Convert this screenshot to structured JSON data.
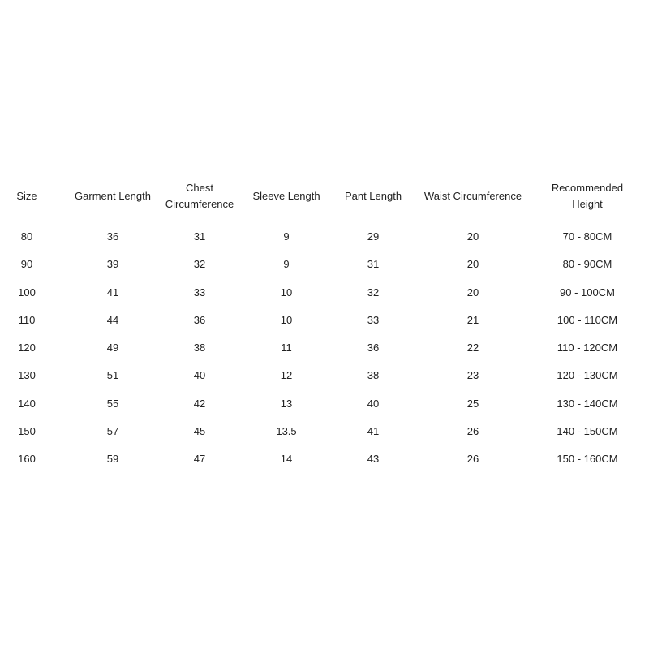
{
  "size_chart": {
    "headers": [
      "Size",
      "Garment Length",
      "Chest Circumference",
      "Sleeve Length",
      "Pant Length",
      "Waist Circumference",
      "Recommended Height"
    ],
    "rows": [
      [
        "80",
        "36",
        "31",
        "9",
        "29",
        "20",
        "70 - 80CM"
      ],
      [
        "90",
        "39",
        "32",
        "9",
        "31",
        "20",
        "80 - 90CM"
      ],
      [
        "100",
        "41",
        "33",
        "10",
        "32",
        "20",
        "90 - 100CM"
      ],
      [
        "110",
        "44",
        "36",
        "10",
        "33",
        "21",
        "100 - 110CM"
      ],
      [
        "120",
        "49",
        "38",
        "11",
        "36",
        "22",
        "110 - 120CM"
      ],
      [
        "130",
        "51",
        "40",
        "12",
        "38",
        "23",
        "120 - 130CM"
      ],
      [
        "140",
        "55",
        "42",
        "13",
        "40",
        "25",
        "130 - 140CM"
      ],
      [
        "150",
        "57",
        "45",
        "13.5",
        "41",
        "26",
        "140 - 150CM"
      ],
      [
        "160",
        "59",
        "47",
        "14",
        "43",
        "26",
        "150 - 160CM"
      ]
    ]
  }
}
